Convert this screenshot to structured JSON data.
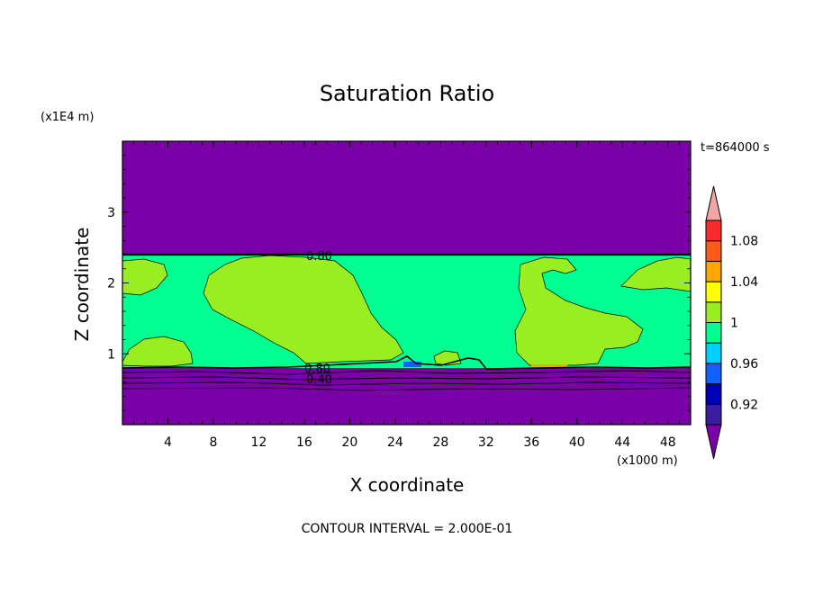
{
  "chart_data": {
    "type": "heatmap",
    "title": "Saturation Ratio",
    "xlabel": "X coordinate",
    "ylabel": "Z coordinate",
    "x_unit": "(x1000 m)",
    "y_unit": "(x1E4 m)",
    "time_label": "t=864000 s",
    "footer": "CONTOUR INTERVAL = 2.000E-01",
    "xlim": [
      0,
      50
    ],
    "ylim": [
      0,
      4
    ],
    "x_ticks": [
      "4",
      "8",
      "12",
      "16",
      "20",
      "24",
      "28",
      "32",
      "36",
      "40",
      "44",
      "48"
    ],
    "y_ticks": [
      "1",
      "2",
      "3"
    ],
    "contour_labels": [
      "0.80",
      "0.80",
      "0.40"
    ],
    "regions": [
      {
        "name": "upper",
        "z_range": [
          2.4,
          4.0
        ],
        "band": "below 0.90"
      },
      {
        "name": "cloud-layer",
        "z_range": [
          0.82,
          2.4
        ],
        "band": "0.98-1"
      },
      {
        "name": "lower",
        "z_range": [
          0.0,
          0.82
        ],
        "band": "below 0.90"
      }
    ],
    "colorbar": {
      "labels": [
        "1.08",
        "1.04",
        "1",
        "0.96",
        "0.92"
      ],
      "bands": [
        {
          "range": "below 0.90",
          "color": "#7a00a8"
        },
        {
          "range": "0.90-0.92",
          "color": "#3a1ea0"
        },
        {
          "range": "0.92-0.94",
          "color": "#0000b8"
        },
        {
          "range": "0.94-0.96",
          "color": "#1460ff"
        },
        {
          "range": "0.96-0.98",
          "color": "#00d0ff"
        },
        {
          "range": "0.98-1",
          "color": "#00ff90"
        },
        {
          "range": "1-1.02",
          "color": "#99ee22"
        },
        {
          "range": "1.02-1.04",
          "color": "#ffff00"
        },
        {
          "range": "1.04-1.06",
          "color": "#ffa500"
        },
        {
          "range": "1.06-1.08",
          "color": "#ff5a1a"
        },
        {
          "range": "1.08-1.10",
          "color": "#ff2a2a"
        },
        {
          "range": "above 1.10",
          "color": "#f0a6a6"
        }
      ]
    }
  }
}
